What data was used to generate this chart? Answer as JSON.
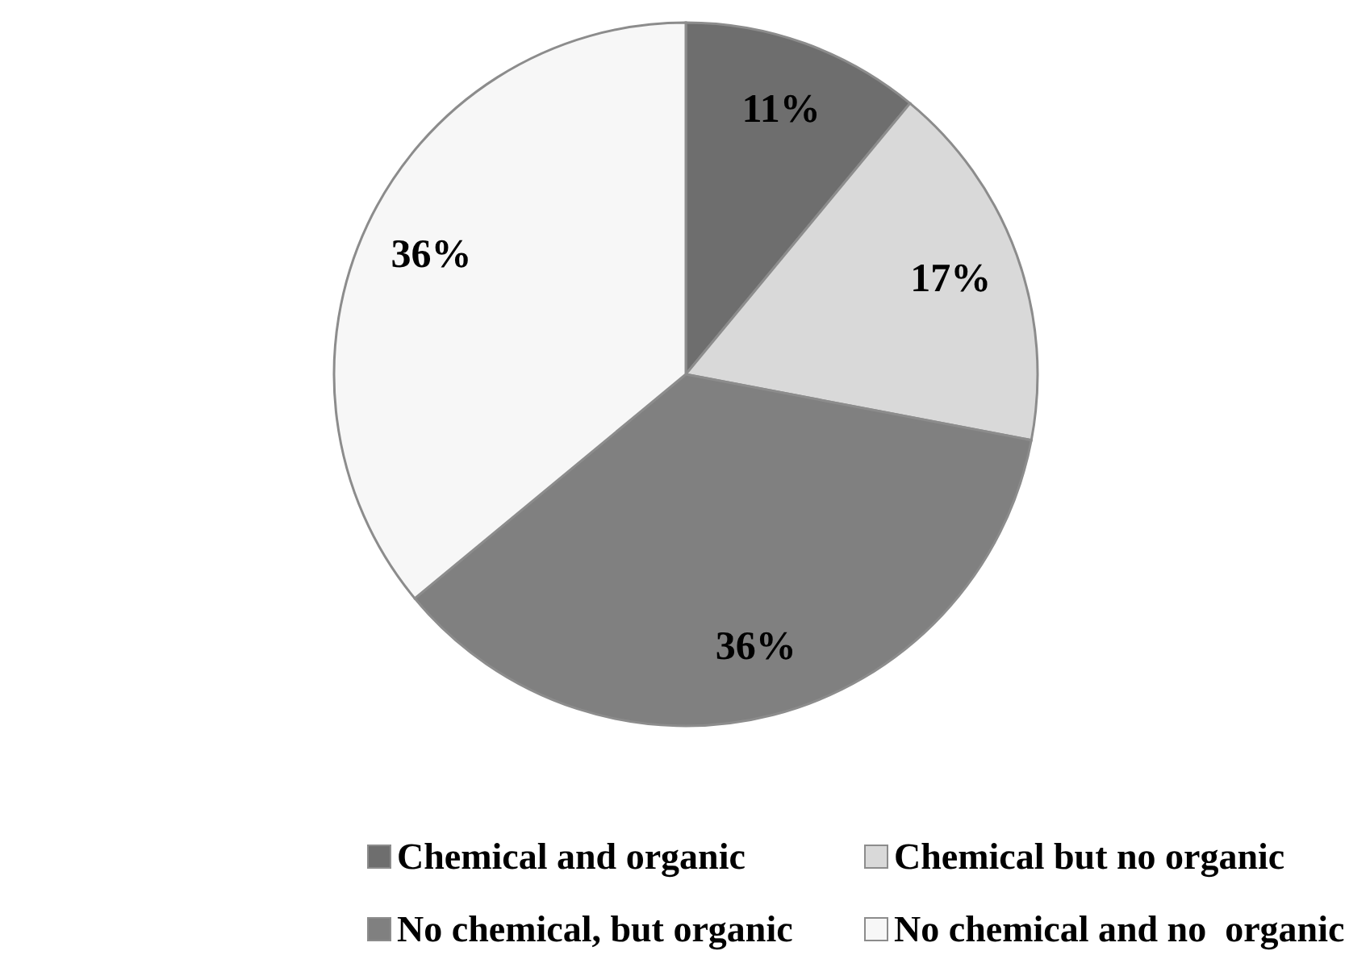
{
  "chart_data": {
    "type": "pie",
    "categories": [
      "Chemical and organic",
      "Chemical but no organic",
      "No chemical, but organic",
      "No chemical and no  organic"
    ],
    "values": [
      11,
      17,
      36,
      36
    ],
    "colors": [
      "#6e6e6e",
      "#d9d9d9",
      "#808080",
      "#f7f7f7"
    ],
    "value_labels": [
      "11%",
      "17%",
      "36%",
      "36%"
    ],
    "legend": "bottom"
  }
}
